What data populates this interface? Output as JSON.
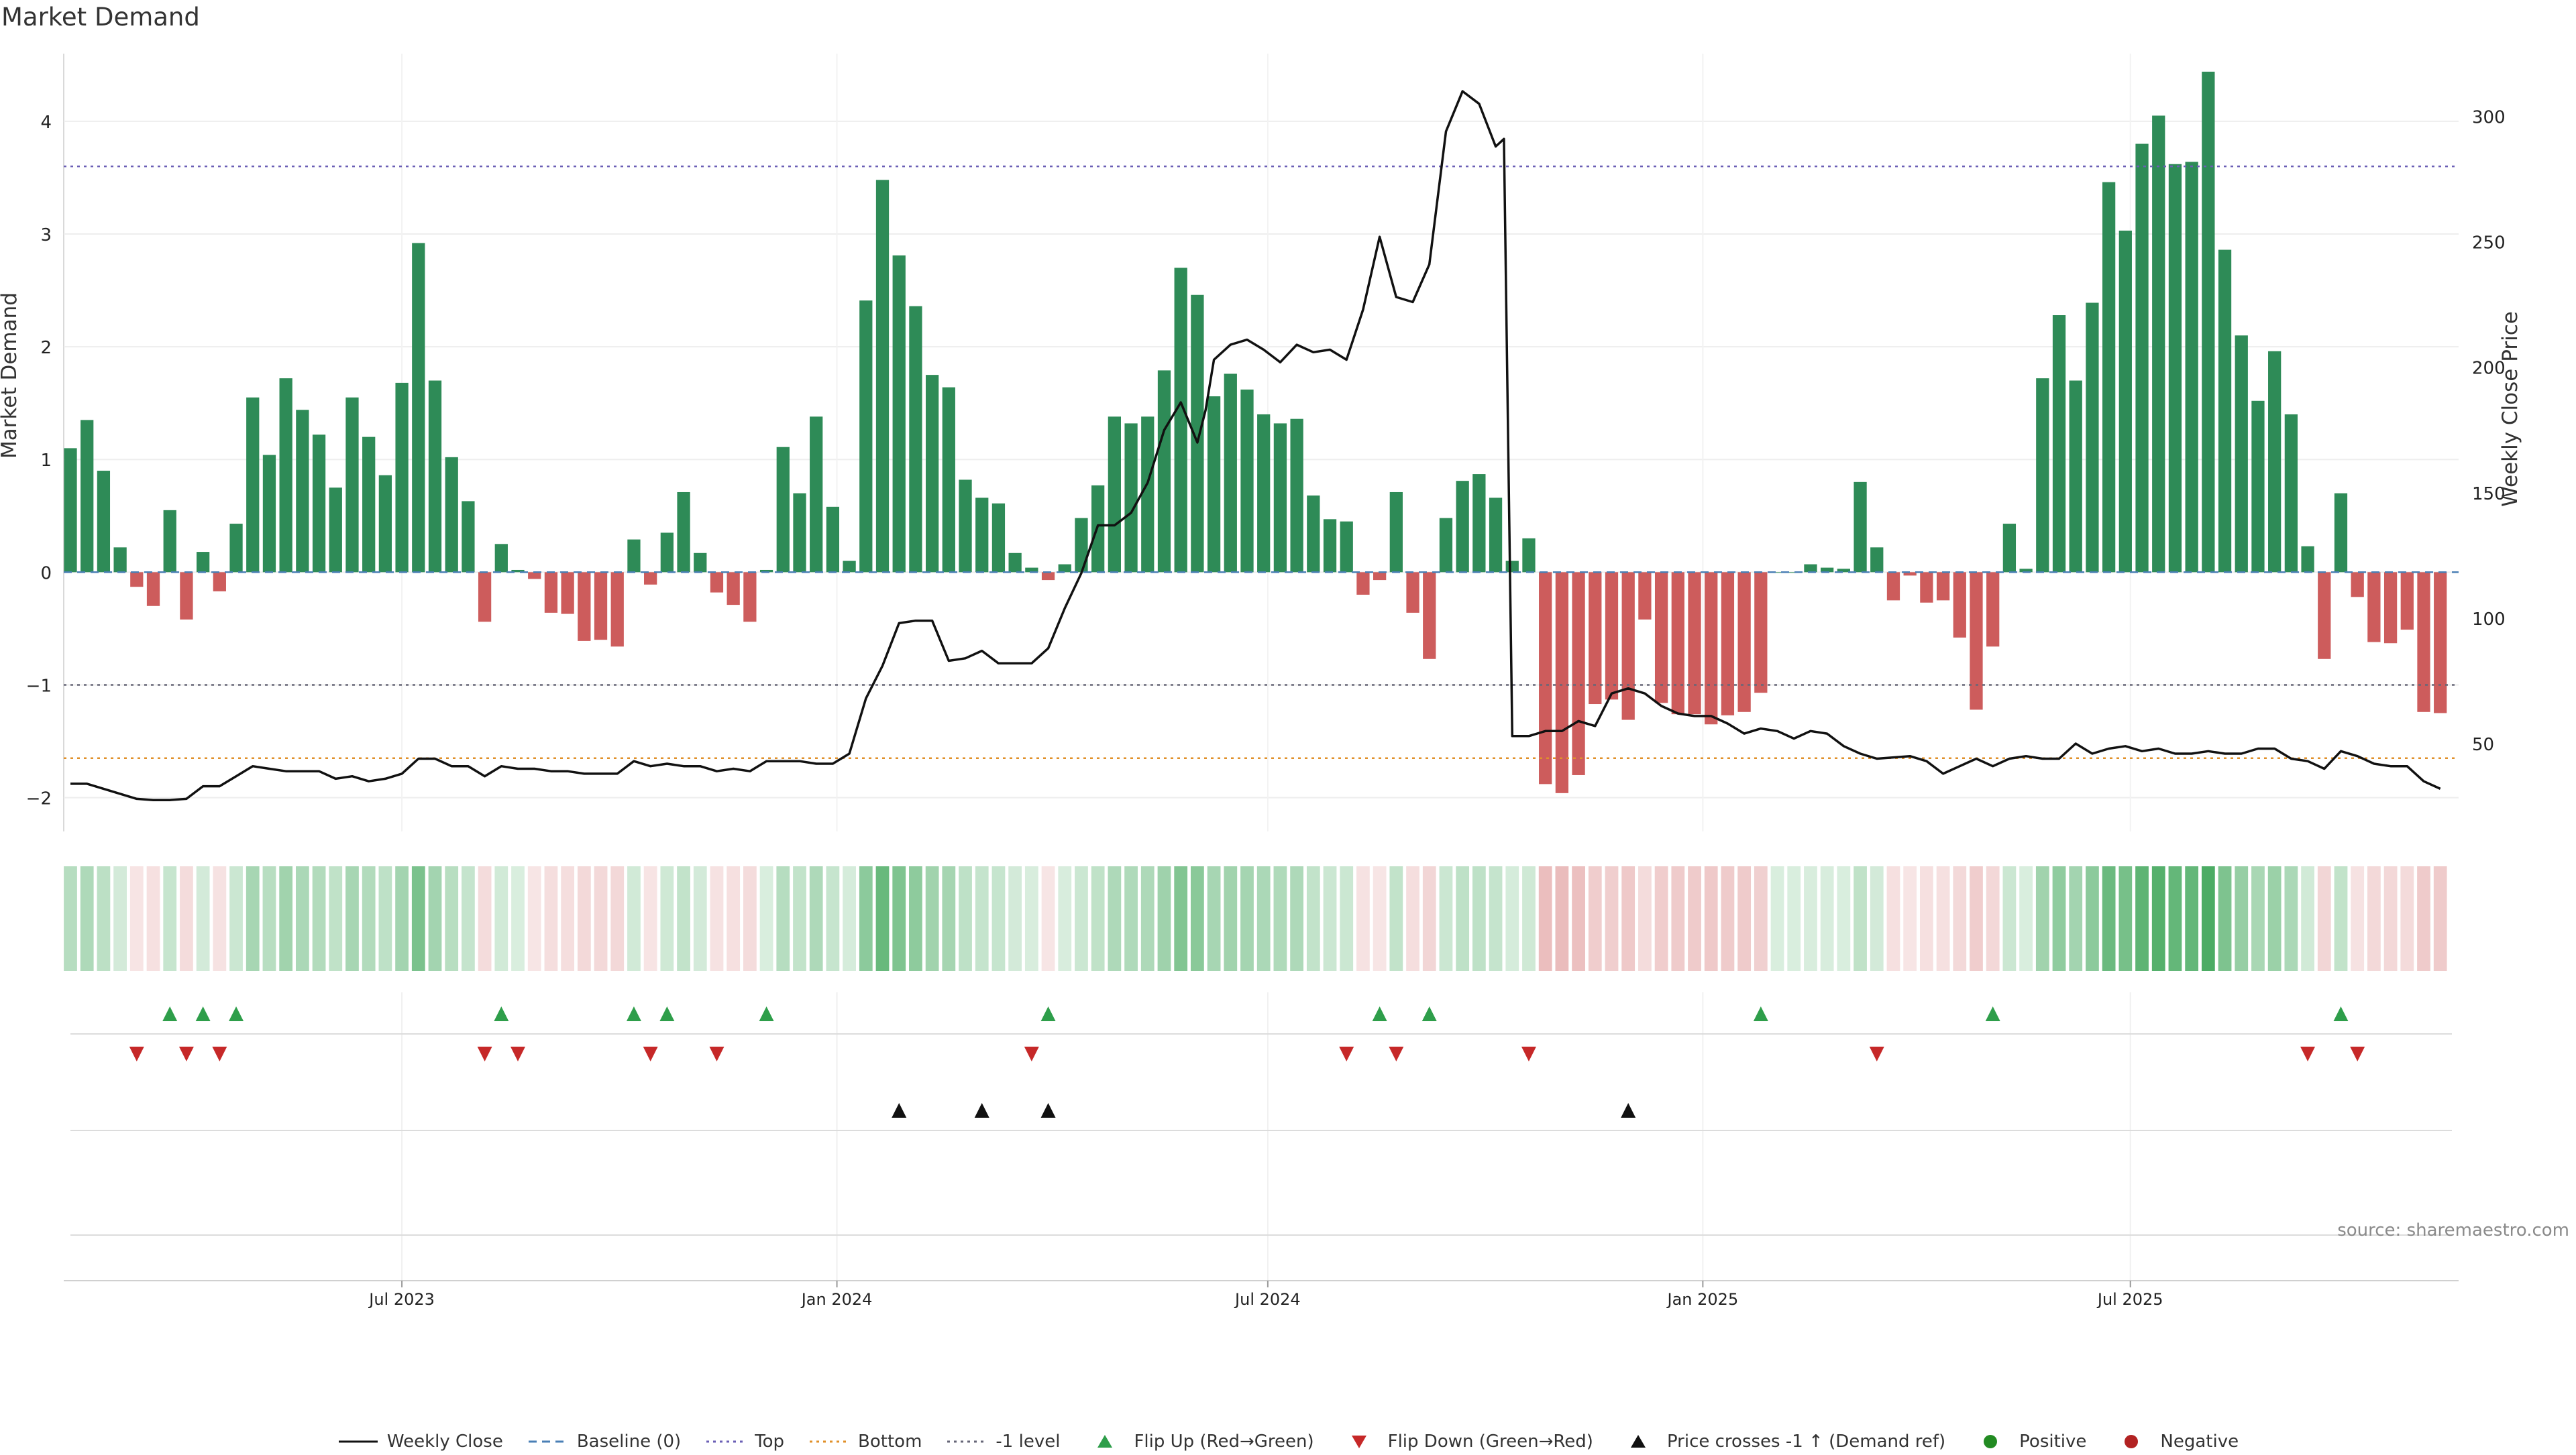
{
  "chart_data": {
    "type": "bar",
    "title": "Market Demand",
    "ylabel": "Market Demand",
    "y2label": "Weekly Close Price",
    "ylim": [
      -2.3,
      4.6
    ],
    "y2lim": [
      15,
      325
    ],
    "yticks": [
      -2,
      -1,
      0,
      1,
      2,
      3,
      4
    ],
    "y2ticks": [
      50,
      100,
      150,
      200,
      250,
      300
    ],
    "xlim_weeks": [
      0,
      143.7
    ],
    "xticks": [
      {
        "label": "Jul 2023",
        "week": 20
      },
      {
        "label": "Jan 2024",
        "week": 46.25
      },
      {
        "label": "Jul 2024",
        "week": 72.25
      },
      {
        "label": "Jan 2025",
        "week": 98.5
      },
      {
        "label": "Jul 2025",
        "week": 124.3
      }
    ],
    "demand": [
      1.1,
      1.35,
      0.9,
      0.22,
      -0.13,
      -0.3,
      0.55,
      -0.42,
      0.18,
      -0.17,
      0.43,
      1.55,
      1.04,
      1.72,
      1.44,
      1.22,
      0.75,
      1.55,
      1.2,
      0.86,
      1.68,
      2.92,
      1.7,
      1.02,
      0.63,
      -0.44,
      0.25,
      0.02,
      -0.06,
      -0.36,
      -0.37,
      -0.61,
      -0.6,
      -0.66,
      0.29,
      -0.11,
      0.35,
      0.71,
      0.17,
      -0.18,
      -0.29,
      -0.44,
      0.02,
      1.11,
      0.7,
      1.38,
      0.58,
      0.1,
      2.41,
      3.48,
      2.81,
      2.36,
      1.75,
      1.64,
      0.82,
      0.66,
      0.61,
      0.17,
      0.04,
      -0.07,
      0.07,
      0.48,
      0.77,
      1.38,
      1.32,
      1.38,
      1.79,
      2.7,
      2.46,
      1.56,
      1.76,
      1.62,
      1.4,
      1.32,
      1.36,
      0.68,
      0.47,
      0.45,
      -0.2,
      -0.07,
      0.71,
      -0.36,
      -0.77,
      0.48,
      0.81,
      0.87,
      0.66,
      0.1,
      0.3,
      -1.88,
      -1.96,
      -1.8,
      -1.17,
      -1.13,
      -1.31,
      -0.42,
      -1.16,
      -1.26,
      -1.26,
      -1.35,
      -1.27,
      -1.24,
      -1.07,
      0,
      0,
      0.07,
      0.04,
      0.03,
      0.8,
      0.22,
      -0.25,
      -0.03,
      -0.27,
      -0.25,
      -0.58,
      -1.22,
      -0.66,
      0.43,
      0.03,
      1.72,
      2.28,
      1.7,
      2.39,
      3.46,
      3.03,
      3.8,
      4.05,
      3.62,
      3.64,
      4.44,
      2.86,
      2.1,
      1.52,
      1.96,
      1.4,
      0.23,
      -0.77,
      0.7,
      -0.22,
      -0.62,
      -0.63,
      -0.51,
      -1.24,
      -1.25
    ],
    "price_weeks": [
      0,
      1,
      2,
      3,
      4,
      5,
      6,
      7,
      8,
      9,
      10,
      11,
      12,
      13,
      14,
      15,
      16,
      17,
      18,
      19,
      20,
      21,
      22,
      23,
      24,
      25,
      26,
      27,
      28,
      29,
      30,
      31,
      32,
      33,
      34,
      35,
      36,
      37,
      38,
      39,
      40,
      41,
      42,
      43,
      44,
      45,
      46,
      47,
      48,
      49,
      50,
      51,
      52,
      53,
      54,
      55,
      56,
      57,
      58,
      59,
      60,
      61,
      62,
      63,
      64,
      65,
      66,
      67,
      68,
      68.5,
      69,
      70,
      71,
      72,
      73,
      74,
      75,
      76,
      77,
      78,
      79,
      80,
      81,
      82,
      83,
      84,
      85,
      86,
      86.5,
      87,
      87.5,
      88,
      89,
      90,
      91,
      92,
      93,
      94,
      95,
      96,
      97,
      98,
      99,
      100,
      101,
      102,
      103,
      104,
      105,
      106,
      107,
      108,
      109,
      110,
      111,
      112,
      113,
      114,
      115,
      116,
      117,
      118,
      119,
      120,
      121,
      122,
      123,
      124,
      125,
      126,
      127,
      128,
      129,
      130,
      131,
      132,
      133,
      134,
      135,
      136,
      137,
      138,
      139,
      140,
      141,
      142,
      143
    ],
    "price": [
      34,
      34,
      32,
      30,
      28,
      27.5,
      27.5,
      28,
      33,
      33,
      37,
      41,
      40,
      39,
      39,
      39,
      36,
      37,
      35,
      36,
      38,
      44,
      44,
      41,
      41,
      37,
      41,
      40,
      40,
      39,
      39,
      38,
      38,
      38,
      43,
      41,
      42,
      41,
      41,
      39,
      40,
      39,
      43,
      43,
      43,
      42,
      42,
      46,
      68,
      81,
      98,
      99,
      99,
      83,
      84,
      87,
      82,
      82,
      82,
      88,
      104,
      118,
      137,
      137,
      142,
      154,
      175,
      186,
      170,
      183,
      203,
      209,
      211,
      207,
      202,
      209,
      206,
      207,
      203,
      223,
      252,
      228,
      226,
      241,
      294,
      310,
      305,
      288,
      291,
      53,
      53,
      53,
      55,
      55,
      59,
      57,
      70,
      72,
      70,
      65,
      62,
      61,
      61,
      58,
      54,
      56,
      55,
      52,
      55,
      54,
      49,
      46,
      44,
      44.5,
      45,
      43,
      38,
      41,
      44,
      41,
      44,
      45,
      44,
      44,
      50,
      46,
      48,
      49,
      47,
      48,
      46,
      46,
      47,
      46,
      46,
      48,
      48,
      44,
      43,
      40,
      47,
      45,
      42,
      41,
      41,
      35,
      32
    ],
    "levels": {
      "baseline": 0,
      "top": 3.6,
      "bottom": -1.65,
      "minus_one": -1
    },
    "flip_up_weeks": [
      6,
      8,
      10,
      26,
      34,
      36,
      42,
      59,
      79,
      82,
      102,
      116,
      137
    ],
    "flip_down_weeks": [
      4,
      7,
      9,
      25,
      27,
      35,
      39,
      58,
      77,
      80,
      88,
      109,
      135,
      138
    ],
    "price_cross_weeks": [
      50,
      55,
      59,
      94
    ],
    "legend": [
      {
        "label": "Weekly Close",
        "kind": "line",
        "color": "#111111"
      },
      {
        "label": "Baseline (0)",
        "kind": "dashed",
        "color": "#4a7fb5"
      },
      {
        "label": "Top",
        "kind": "dotted",
        "color": "#6b5fb5"
      },
      {
        "label": "Bottom",
        "kind": "dotted",
        "color": "#e0902a"
      },
      {
        "label": "-1 level",
        "kind": "dotted",
        "color": "#666677"
      },
      {
        "label": "Flip Up (Red→Green)",
        "kind": "tri-up",
        "color": "#2e9e4a"
      },
      {
        "label": "Flip Down (Green→Red)",
        "kind": "tri-down",
        "color": "#c62828"
      },
      {
        "label": "Price crosses -1 ↑ (Demand ref)",
        "kind": "tri-up",
        "color": "#111111"
      },
      {
        "label": "Positive",
        "kind": "dot",
        "color": "#228b22"
      },
      {
        "label": "Negative",
        "kind": "dot",
        "color": "#b22222"
      }
    ],
    "source": "source: sharemaestro.com"
  },
  "colors": {
    "positive_bar": "#2e8b57",
    "negative_bar": "#cd5c5c",
    "price_line": "#111111"
  }
}
